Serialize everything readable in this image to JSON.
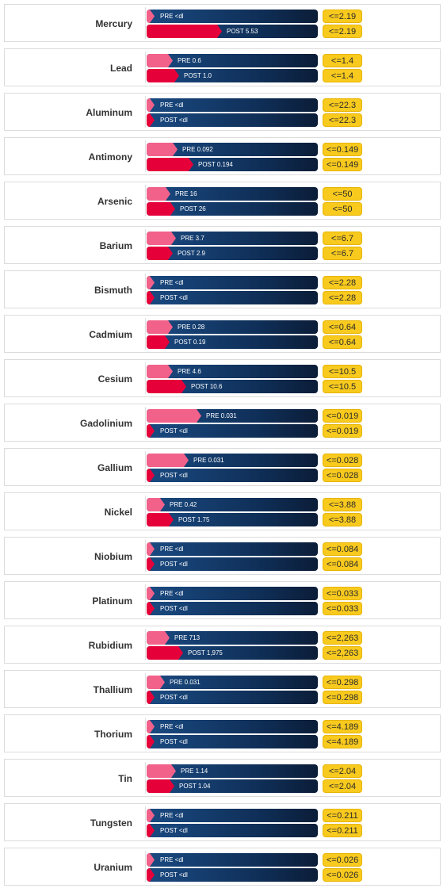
{
  "chart_data": {
    "type": "bar",
    "scale_max": 2263,
    "colors": {
      "pre": "#f2618a",
      "post": "#e5003a",
      "track": "#0f2f58",
      "limit": "#f9ca1e"
    },
    "rows": [
      {
        "name": "Mercury",
        "pre": 0,
        "pre_label": "PRE <dl",
        "post": 5.53,
        "post_label": "POST 5.53",
        "limit": 2.19,
        "limit_label": "<=2.19"
      },
      {
        "name": "Lead",
        "pre": 0.6,
        "pre_label": "PRE 0.6",
        "post": 1.0,
        "post_label": "POST 1.0",
        "limit": 1.4,
        "limit_label": "<=1.4"
      },
      {
        "name": "Aluminum",
        "pre": 0,
        "pre_label": "PRE <dl",
        "post": 0,
        "post_label": "POST <dl",
        "limit": 22.3,
        "limit_label": "<=22.3"
      },
      {
        "name": "Antimony",
        "pre": 0.092,
        "pre_label": "PRE 0.092",
        "post": 0.194,
        "post_label": "POST 0.194",
        "limit": 0.149,
        "limit_label": "<=0.149"
      },
      {
        "name": "Arsenic",
        "pre": 16,
        "pre_label": "PRE 16",
        "post": 26,
        "post_label": "POST 26",
        "limit": 50,
        "limit_label": "<=50"
      },
      {
        "name": "Barium",
        "pre": 3.7,
        "pre_label": "PRE 3.7",
        "post": 2.9,
        "post_label": "POST 2.9",
        "limit": 6.7,
        "limit_label": "<=6.7"
      },
      {
        "name": "Bismuth",
        "pre": 0,
        "pre_label": "PRE <dl",
        "post": 0,
        "post_label": "POST <dl",
        "limit": 2.28,
        "limit_label": "<=2.28"
      },
      {
        "name": "Cadmium",
        "pre": 0.28,
        "pre_label": "PRE 0.28",
        "post": 0.19,
        "post_label": "POST 0.19",
        "limit": 0.64,
        "limit_label": "<=0.64"
      },
      {
        "name": "Cesium",
        "pre": 4.6,
        "pre_label": "PRE 4.6",
        "post": 10.6,
        "post_label": "POST 10.6",
        "limit": 10.5,
        "limit_label": "<=10.5"
      },
      {
        "name": "Gadolinium",
        "pre": 0.031,
        "pre_label": "PRE 0.031",
        "post": 0,
        "post_label": "POST <dl",
        "limit": 0.019,
        "limit_label": "<=0.019"
      },
      {
        "name": "Gallium",
        "pre": 0.031,
        "pre_label": "PRE 0.031",
        "post": 0,
        "post_label": "POST <dl",
        "limit": 0.028,
        "limit_label": "<=0.028"
      },
      {
        "name": "Nickel",
        "pre": 0.42,
        "pre_label": "PRE 0.42",
        "post": 1.75,
        "post_label": "POST 1.75",
        "limit": 3.88,
        "limit_label": "<=3.88"
      },
      {
        "name": "Niobium",
        "pre": 0,
        "pre_label": "PRE <dl",
        "post": 0,
        "post_label": "POST <dl",
        "limit": 0.084,
        "limit_label": "<=0.084"
      },
      {
        "name": "Platinum",
        "pre": 0,
        "pre_label": "PRE <dl",
        "post": 0,
        "post_label": "POST <dl",
        "limit": 0.033,
        "limit_label": "<=0.033"
      },
      {
        "name": "Rubidium",
        "pre": 713,
        "pre_label": "PRE 713",
        "post": 1975,
        "post_label": "POST 1,975",
        "limit": 2263,
        "limit_label": "<=2,263"
      },
      {
        "name": "Thallium",
        "pre": 0.031,
        "pre_label": "PRE 0.031",
        "post": 0,
        "post_label": "POST <dl",
        "limit": 0.298,
        "limit_label": "<=0.298"
      },
      {
        "name": "Thorium",
        "pre": 0,
        "pre_label": "PRE <dl",
        "post": 0,
        "post_label": "POST <dl",
        "limit": 4.189,
        "limit_label": "<=4.189"
      },
      {
        "name": "Tin",
        "pre": 1.14,
        "pre_label": "PRE 1.14",
        "post": 1.04,
        "post_label": "POST 1.04",
        "limit": 2.04,
        "limit_label": "<=2.04"
      },
      {
        "name": "Tungsten",
        "pre": 0,
        "pre_label": "PRE <dl",
        "post": 0,
        "post_label": "POST <dl",
        "limit": 0.211,
        "limit_label": "<=0.211"
      },
      {
        "name": "Uranium",
        "pre": 0,
        "pre_label": "PRE <dl",
        "post": 0,
        "post_label": "POST <dl",
        "limit": 0.026,
        "limit_label": "<=0.026"
      }
    ]
  }
}
